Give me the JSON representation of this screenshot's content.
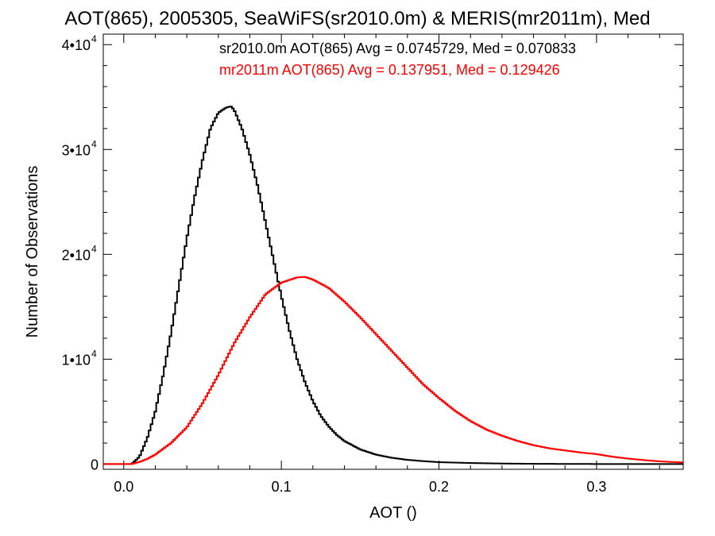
{
  "chart_data": {
    "type": "line",
    "title": "AOT(865), 2005305, SeaWiFS(sr2010.0m) & MERIS(mr2011m), Med",
    "xlabel": "AOT ()",
    "ylabel": "Number of Observations",
    "xlim": [
      -0.013,
      0.355
    ],
    "ylim": [
      -500,
      41000
    ],
    "x_ticks": [
      {
        "value": 0.0,
        "label": "0.0"
      },
      {
        "value": 0.1,
        "label": "0.1"
      },
      {
        "value": 0.2,
        "label": "0.2"
      },
      {
        "value": 0.3,
        "label": "0.3"
      }
    ],
    "y_ticks": [
      {
        "value": 0,
        "label": "0",
        "exp": ""
      },
      {
        "value": 10000,
        "label": "1•10",
        "exp": "4"
      },
      {
        "value": 20000,
        "label": "2•10",
        "exp": "4"
      },
      {
        "value": 30000,
        "label": "3•10",
        "exp": "4"
      },
      {
        "value": 40000,
        "label": "4•10",
        "exp": "4"
      }
    ],
    "grid": false,
    "step": true,
    "series": [
      {
        "name": "sr2010.0m",
        "legend": "sr2010.0m AOT(865) Avg = 0.0745729, Med = 0.070833",
        "color": "#000000",
        "x": [
          -0.013,
          0.0,
          0.005,
          0.01,
          0.015,
          0.02,
          0.025,
          0.03,
          0.035,
          0.04,
          0.045,
          0.05,
          0.055,
          0.06,
          0.065,
          0.068,
          0.07,
          0.075,
          0.08,
          0.085,
          0.09,
          0.095,
          0.1,
          0.105,
          0.11,
          0.115,
          0.12,
          0.125,
          0.13,
          0.135,
          0.14,
          0.15,
          0.16,
          0.17,
          0.18,
          0.19,
          0.2,
          0.22,
          0.24,
          0.26,
          0.28,
          0.3,
          0.355
        ],
        "y": [
          0,
          0,
          0,
          700,
          2500,
          5000,
          8500,
          12500,
          17000,
          21500,
          25500,
          29000,
          32000,
          33500,
          34000,
          34100,
          33800,
          32000,
          29500,
          26500,
          23000,
          19500,
          16000,
          12800,
          10000,
          7800,
          6000,
          4600,
          3600,
          2800,
          2200,
          1400,
          900,
          600,
          400,
          280,
          180,
          100,
          50,
          25,
          12,
          5,
          0
        ]
      },
      {
        "name": "mr2011m",
        "legend": "mr2011m AOT(865) Avg = 0.137951, Med = 0.129426",
        "color": "#ff0000",
        "x": [
          -0.013,
          0.005,
          0.01,
          0.015,
          0.02,
          0.03,
          0.04,
          0.05,
          0.06,
          0.07,
          0.08,
          0.09,
          0.1,
          0.11,
          0.115,
          0.12,
          0.13,
          0.14,
          0.15,
          0.16,
          0.17,
          0.18,
          0.19,
          0.2,
          0.21,
          0.22,
          0.23,
          0.24,
          0.25,
          0.26,
          0.27,
          0.28,
          0.29,
          0.3,
          0.31,
          0.32,
          0.33,
          0.34,
          0.355
        ],
        "y": [
          0,
          0,
          200,
          500,
          900,
          2000,
          3500,
          5800,
          8500,
          11500,
          14000,
          16200,
          17300,
          17800,
          17850,
          17600,
          16800,
          15500,
          14000,
          12400,
          10800,
          9200,
          7600,
          6300,
          5100,
          4100,
          3300,
          2700,
          2200,
          1800,
          1500,
          1300,
          1100,
          950,
          700,
          520,
          380,
          260,
          150
        ]
      }
    ]
  }
}
